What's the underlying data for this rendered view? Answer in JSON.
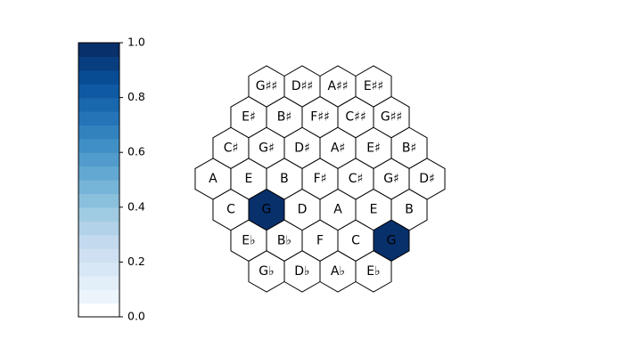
{
  "colors": {
    "empty": "#ffffff",
    "highlight": "#08306b",
    "note_text_default": "#000000",
    "note_text_highlight": "#000000"
  },
  "chart_data": {
    "type": "heatmap",
    "title": "",
    "description_layout": "hexagonal tonnetz grid",
    "colormap": "Blues",
    "colorbar": {
      "range": [
        0.0,
        1.0
      ],
      "ticks": [
        "0.0",
        "0.2",
        "0.4",
        "0.6",
        "0.8",
        "1.0"
      ],
      "levels": 20,
      "stops": [
        "#f7fbff",
        "#deebf7",
        "#c6dbef",
        "#9ecae1",
        "#6baed6",
        "#4292c6",
        "#2171b5",
        "#08519c",
        "#08306b"
      ],
      "placement": "left"
    },
    "rows": [
      {
        "labels": [
          "G♯♯",
          "D♯♯",
          "A♯♯",
          "E♯♯"
        ],
        "values": [
          0,
          0,
          0,
          0
        ]
      },
      {
        "labels": [
          "E♯",
          "B♯",
          "F♯♯",
          "C♯♯",
          "G♯♯"
        ],
        "values": [
          0,
          0,
          0,
          0,
          0
        ]
      },
      {
        "labels": [
          "C♯",
          "G♯",
          "D♯",
          "A♯",
          "E♯",
          "B♯"
        ],
        "values": [
          0,
          0,
          0,
          0,
          0,
          0
        ]
      },
      {
        "labels": [
          "A",
          "E",
          "B",
          "F♯",
          "C♯",
          "G♯",
          "D♯"
        ],
        "values": [
          0,
          0,
          0,
          0,
          0,
          0,
          0
        ]
      },
      {
        "labels": [
          "C",
          "G",
          "D",
          "A",
          "E",
          "B"
        ],
        "values": [
          0,
          1,
          0,
          0,
          0,
          0
        ]
      },
      {
        "labels": [
          "E♭",
          "B♭",
          "F",
          "C",
          "G"
        ],
        "values": [
          0,
          0,
          0,
          0,
          1
        ]
      },
      {
        "labels": [
          "G♭",
          "D♭",
          "A♭",
          "E♭"
        ],
        "values": [
          0,
          0,
          0,
          0
        ]
      }
    ]
  }
}
